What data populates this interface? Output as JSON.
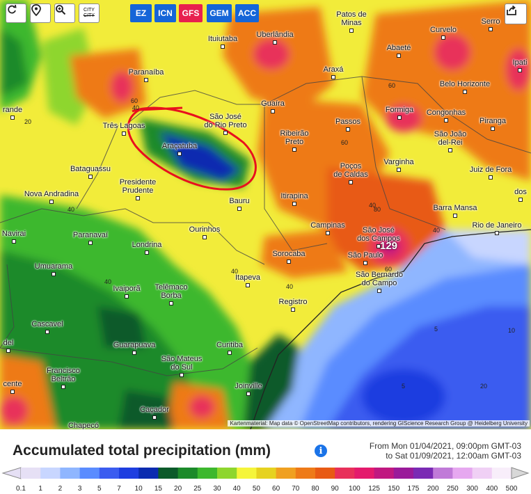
{
  "toolbar": {
    "refresh_icon": "refresh-icon",
    "marker_icon": "map-pin-icon",
    "zoom_icon": "zoom-icon",
    "city_label_top": "CITY",
    "city_label_bottom": "CITY",
    "share_icon": "share-icon"
  },
  "models": [
    {
      "label": "EZ",
      "color": "#1565d8",
      "active": false
    },
    {
      "label": "ICN",
      "color": "#1565d8",
      "active": false
    },
    {
      "label": "GFS",
      "color": "#e8204e",
      "active": true
    },
    {
      "label": "GEM",
      "color": "#1565d8",
      "active": false
    },
    {
      "label": "ACC",
      "color": "#1565d8",
      "active": false
    }
  ],
  "cities": [
    {
      "name": "Patos de",
      "name2": "Minas"
    },
    {
      "name": "Uberlândia"
    },
    {
      "name": "Ituiutaba"
    },
    {
      "name": "Curvelo"
    },
    {
      "name": "Serro"
    },
    {
      "name": "Abaeté"
    },
    {
      "name": "Ipati"
    },
    {
      "name": "Paranaíba"
    },
    {
      "name": "Araxá"
    },
    {
      "name": "Belo Horizonte"
    },
    {
      "name": "Guaíra"
    },
    {
      "name": "rande"
    },
    {
      "name": "Três Lagoas"
    },
    {
      "name": "São José",
      "name2": "do Rio Preto"
    },
    {
      "name": "Formiga"
    },
    {
      "name": "Congonhas"
    },
    {
      "name": "Passos"
    },
    {
      "name": "Piranga"
    },
    {
      "name": "Ribeirão",
      "name2": "Preto"
    },
    {
      "name": "São João",
      "name2": "del-Rei"
    },
    {
      "name": "Araçatuba"
    },
    {
      "name": "Varginha"
    },
    {
      "name": "Poços",
      "name2": "de Caldas"
    },
    {
      "name": "Juiz de Fora"
    },
    {
      "name": "Bataguassu"
    },
    {
      "name": "Presidente",
      "name2": "Prudente"
    },
    {
      "name": "Nova Andradina"
    },
    {
      "name": "Bauru"
    },
    {
      "name": "Itirapina"
    },
    {
      "name": "Barra Mansa"
    },
    {
      "name": "Campinas"
    },
    {
      "name": "Rio de Janeiro"
    },
    {
      "name": "São José",
      "name2": "dos Campos"
    },
    {
      "name": "Navirai"
    },
    {
      "name": "Paranavaí"
    },
    {
      "name": "Ourinhos"
    },
    {
      "name": "Londrina"
    },
    {
      "name": "Sorocaba"
    },
    {
      "name": "São Paulo"
    },
    {
      "name": "São Bernardo",
      "name2": "do Campo"
    },
    {
      "name": "Umuarama"
    },
    {
      "name": "Itapeva"
    },
    {
      "name": "Ivaiporã"
    },
    {
      "name": "Telêmaco",
      "name2": "Borba"
    },
    {
      "name": "Registro"
    },
    {
      "name": "Cascavel"
    },
    {
      "name": "Guarapuava"
    },
    {
      "name": "Curitiba"
    },
    {
      "name": "São Mateus",
      "name2": "do Sul"
    },
    {
      "name": "Francisco",
      "name2": "Beltrão"
    },
    {
      "name": "Joinville"
    },
    {
      "name": "Caçador"
    },
    {
      "name": "Chapecó"
    },
    {
      "name": "dos"
    },
    {
      "name": "cente"
    },
    {
      "name": "del"
    }
  ],
  "contour_labels": [
    "40",
    "60",
    "20",
    "40",
    "60",
    "80",
    "60",
    "40",
    "40",
    "40",
    "60",
    "40",
    "5",
    "5",
    "10",
    "20",
    "40"
  ],
  "max_value_label": "129",
  "attribution": "Kartenmaterial: Map data © OpenStreetMap contributors, rendering GIScience Research Group @ Heidelberg University",
  "title": "Accumulated total precipitation (mm)",
  "info_icon": "info-icon",
  "range_from": "From Mon 01/04/2021, 09:00pm GMT-03",
  "range_to": "to Sat 01/09/2021, 12:00am GMT-03",
  "legend": {
    "ticks": [
      "0.1",
      "1",
      "2",
      "3",
      "5",
      "7",
      "10",
      "15",
      "20",
      "25",
      "30",
      "40",
      "50",
      "60",
      "70",
      "80",
      "90",
      "100",
      "125",
      "150",
      "175",
      "200",
      "250",
      "300",
      "400",
      "500"
    ],
    "colors": [
      "#e6e0f5",
      "#c8d6ff",
      "#8fb6ff",
      "#5a8cff",
      "#3b5cf0",
      "#1e3ee0",
      "#0a2bb0",
      "#0b5a2a",
      "#1c8a2a",
      "#3db82e",
      "#8ed62e",
      "#f5f53a",
      "#e6d21f",
      "#f0a020",
      "#ee7a18",
      "#e85a14",
      "#e8305a",
      "#e41a6c",
      "#c01880",
      "#9a1a9a",
      "#7a2ab4",
      "#c07ad8",
      "#e6a8f0",
      "#f0d0f5",
      "#f8eefa",
      "#d8d8d8"
    ]
  }
}
